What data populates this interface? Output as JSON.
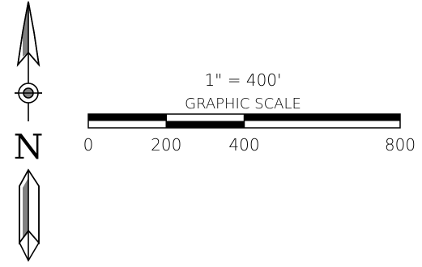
{
  "north_arrow": {
    "letter": "N",
    "icon": "north-arrow-icon"
  },
  "scale": {
    "ratio_text": "1\" = 400'",
    "title": "GRAPHIC SCALE",
    "tick_labels": [
      "0",
      "200",
      "400",
      "800"
    ],
    "units_per_inch": 400,
    "max_value": 800
  }
}
